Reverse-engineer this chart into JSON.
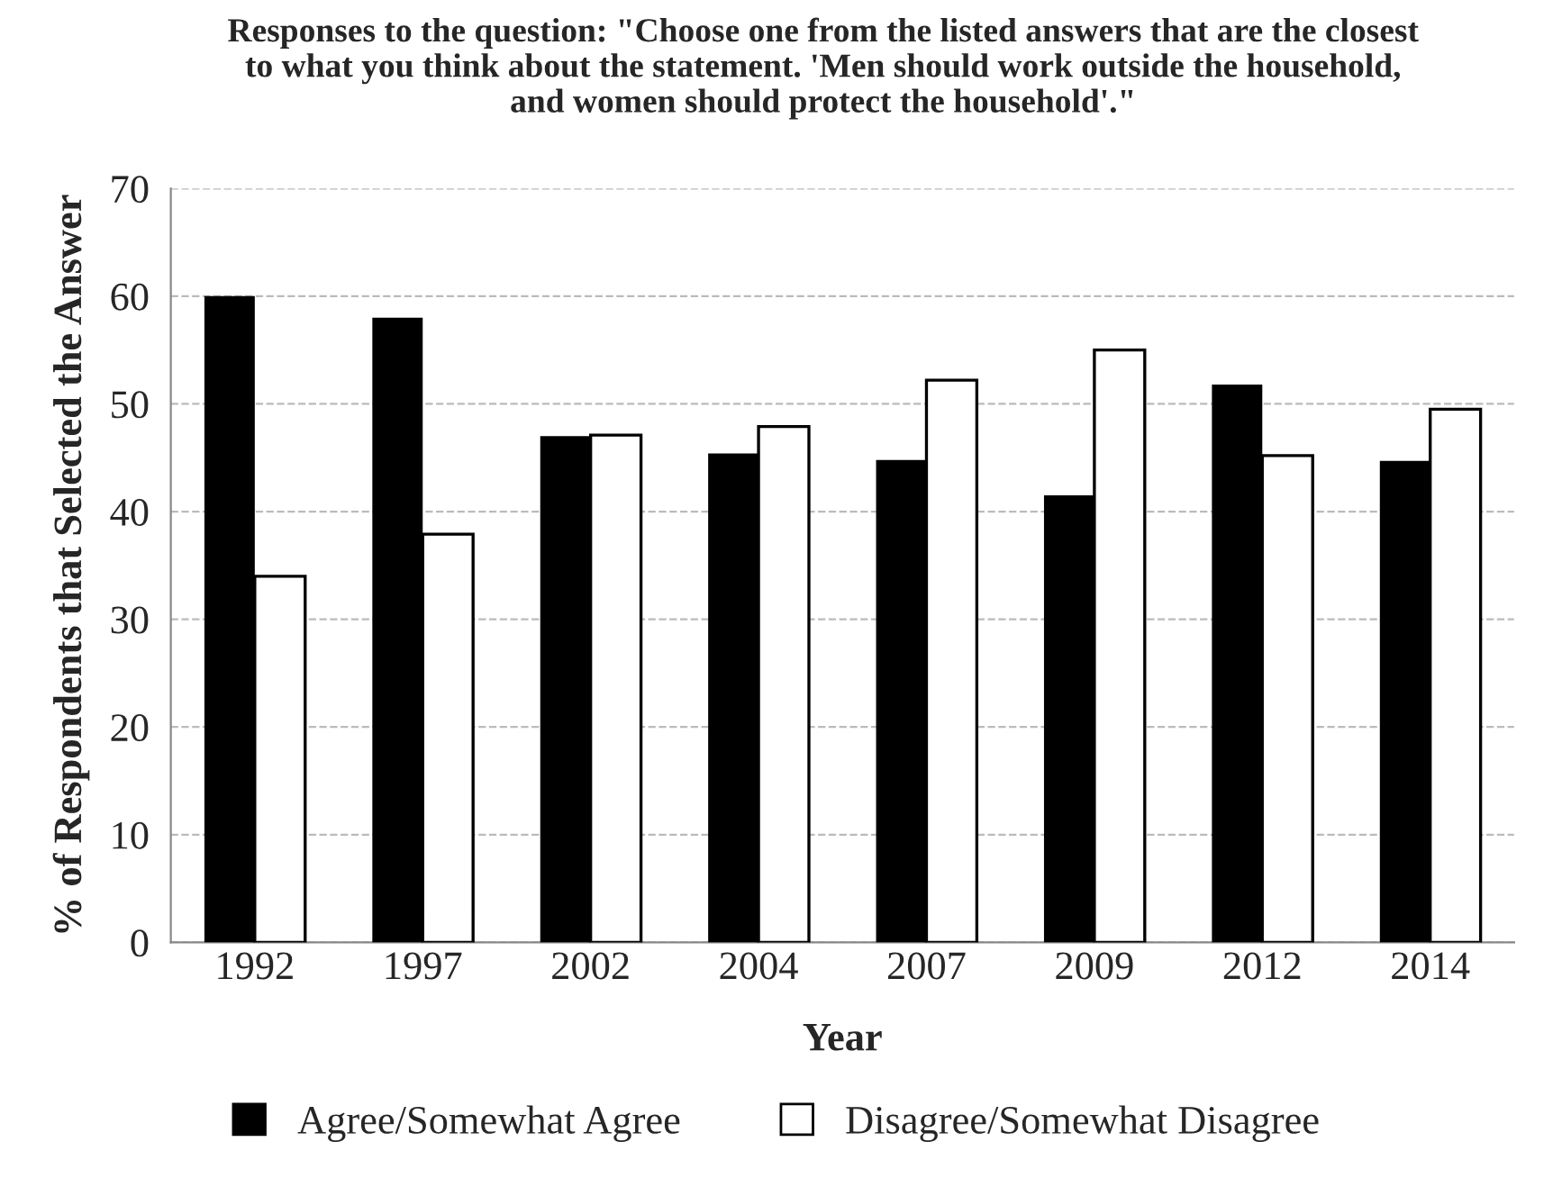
{
  "chart_data": {
    "type": "bar",
    "title": "Responses to the question: \"Choose one from the listed answers that are the closest to what you think about the statement. 'Men should work outside the household, and women should protect the household'.\"",
    "xlabel": "Year",
    "ylabel": "% of Respondents that Selected the Answer",
    "categories": [
      "1992",
      "1997",
      "2002",
      "2004",
      "2007",
      "2009",
      "2012",
      "2014"
    ],
    "series": [
      {
        "name": "Agree/Somewhat Agree",
        "color": "#000000",
        "values": [
          60,
          58,
          47,
          45.4,
          44.8,
          41.5,
          51.8,
          44.7
        ]
      },
      {
        "name": "Disagree/Somewhat Disagree",
        "color": "#ffffff",
        "values": [
          34,
          37.9,
          47.1,
          47.9,
          52.2,
          55,
          45.2,
          49.5
        ]
      }
    ],
    "ylim": [
      0,
      70
    ],
    "yticks": [
      0,
      10,
      20,
      30,
      40,
      50,
      60,
      70
    ],
    "grid": "y",
    "legend": "bottom"
  }
}
